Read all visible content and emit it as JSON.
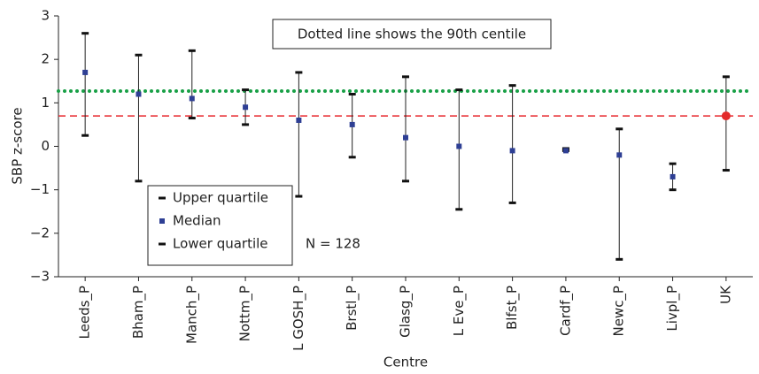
{
  "chart_data": {
    "type": "range",
    "annotation": "Dotted line shows the 90th centile",
    "note": "N = 128",
    "y_label": "SBP z-score",
    "x_label": "Centre",
    "categories": [
      "Leeds_P",
      "Bham_P",
      "Manch_P",
      "Nottm_P",
      "L GOSH_P",
      "Brstl_P",
      "Glasg_P",
      "L Eve_P",
      "Blfst_P",
      "Cardf_P",
      "Newc_P",
      "Livpl_P",
      "UK"
    ],
    "series": [
      {
        "name": "Upper quartile",
        "color": "#111111",
        "values": [
          2.6,
          2.1,
          2.2,
          1.3,
          1.7,
          1.2,
          1.6,
          1.3,
          1.4,
          -0.05,
          0.4,
          -0.4,
          1.6
        ]
      },
      {
        "name": "Median",
        "color": "#2e3f94",
        "colors": [
          "#2e3f94",
          "#2e3f94",
          "#2e3f94",
          "#2e3f94",
          "#2e3f94",
          "#2e3f94",
          "#2e3f94",
          "#2e3f94",
          "#2e3f94",
          "#2e3f94",
          "#2e3f94",
          "#2e3f94",
          "#e32b2b"
        ],
        "values": [
          1.7,
          1.2,
          1.1,
          0.9,
          0.6,
          0.5,
          0.2,
          0.0,
          -0.1,
          -0.1,
          -0.2,
          -0.7,
          0.7
        ]
      },
      {
        "name": "Lower quartile",
        "color": "#111111",
        "values": [
          0.25,
          -0.8,
          0.65,
          0.5,
          -1.15,
          -0.25,
          -0.8,
          -1.45,
          -1.3,
          -0.1,
          -2.6,
          -1.0,
          -0.55
        ]
      }
    ],
    "reference_lines": [
      {
        "value": 1.27,
        "color": "#18a046",
        "style": "dotted"
      },
      {
        "value": 0.7,
        "color": "#e8252a",
        "style": "dashed"
      }
    ],
    "ylim": [
      -3,
      3
    ],
    "yticks": [
      {
        "value": -3,
        "label": "−3"
      },
      {
        "value": -2,
        "label": "−2"
      },
      {
        "value": -1,
        "label": "−1"
      },
      0,
      1,
      2,
      3
    ]
  }
}
